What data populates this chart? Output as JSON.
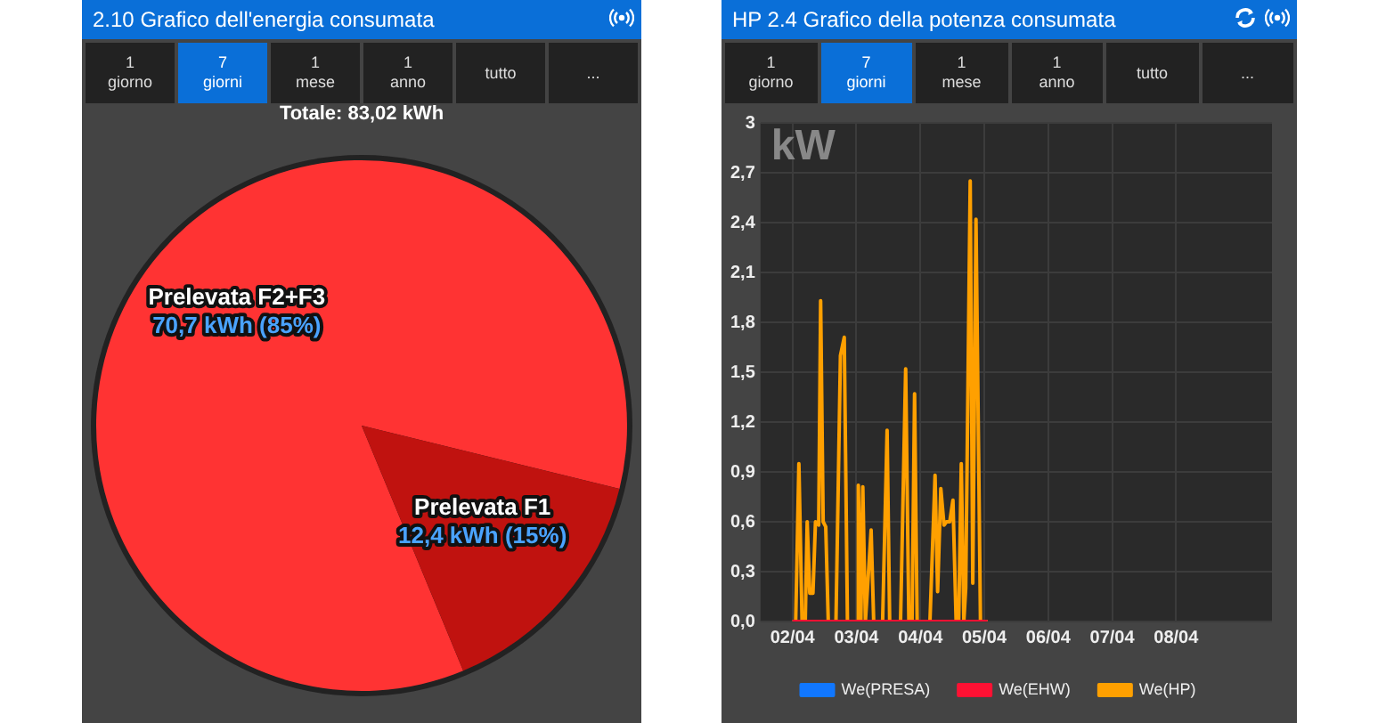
{
  "chart_data": [
    {
      "type": "pie",
      "title": "2.10 Grafico dell'energia consumata",
      "categories": [
        "Prelevata F2+F3",
        "Prelevata F1"
      ],
      "values": [
        70.7,
        12.4
      ],
      "value_labels": [
        "70,7 kWh (85%)",
        "12,4 kWh (15%)"
      ],
      "colors": [
        "#ff3333",
        "#c0120f"
      ],
      "annotations": [
        "Totale: 83,02 kWh",
        "1 giorno",
        "7 giorni",
        "1 mese",
        "1 anno",
        "tutto",
        "..."
      ]
    },
    {
      "type": "line",
      "title": "HP 2.4 Grafico della potenza consumata",
      "ylabel": "kW",
      "xlim": [
        "--04-01T12:00",
        "--04-09T12:00"
      ],
      "xticks": [
        {
          "value": "--04-02",
          "label": "02/04"
        },
        {
          "value": "--04-03",
          "label": "03/04"
        },
        {
          "value": "--04-04",
          "label": "04/04"
        },
        {
          "value": "--04-05",
          "label": "05/04"
        },
        {
          "value": "--04-06",
          "label": "06/04"
        },
        {
          "value": "--04-07",
          "label": "07/04"
        },
        {
          "value": "--04-08",
          "label": "08/04"
        }
      ],
      "ylim": [
        0,
        3
      ],
      "yticks": [
        {
          "value": 0,
          "label": "0,0"
        },
        {
          "value": 0.3,
          "label": "0,3"
        },
        {
          "value": 0.6,
          "label": "0,6"
        },
        {
          "value": 0.9,
          "label": "0,9"
        },
        {
          "value": 1.2,
          "label": "1,2"
        },
        {
          "value": 1.5,
          "label": "1,5"
        },
        {
          "value": 1.8,
          "label": "1,8"
        },
        {
          "value": 2.1,
          "label": "2,1"
        },
        {
          "value": 2.4,
          "label": "2,4"
        },
        {
          "value": 2.7,
          "label": "2,7"
        },
        {
          "value": 3,
          "label": "3"
        }
      ],
      "grid": true,
      "legend": "bottom",
      "marker": "none",
      "line_style": "solid",
      "annotations": [
        "1 giorno",
        "7 giorni",
        "1 mese",
        "1 anno",
        "tutto",
        "..."
      ],
      "series": [
        {
          "name": "We(PRESA)",
          "color": "#1177ff"
        },
        {
          "name": "We(EHW)",
          "color": "#ff1133",
          "x": [
            "--04-02T00:00",
            "--04-05T01:12"
          ],
          "values": [
            0,
            0
          ]
        },
        {
          "name": "We(HP)",
          "color": "#ffa000",
          "x": [
            "--04-02T00:00",
            "--04-02T01:12",
            "--04-02T02:24",
            "--04-02T03:36",
            "--04-02T04:48",
            "--04-02T05:31",
            "--04-02T06:29",
            "--04-02T07:41",
            "--04-02T08:38",
            "--04-02T09:50",
            "--04-02T10:34",
            "--04-02T11:31",
            "--04-02T12:29",
            "--04-02T13:26",
            "--04-02T16:19",
            "--04-02T18:00",
            "--04-02T19:26",
            "--04-02T20:38",
            "--04-03T00:14",
            "--04-03T00:43",
            "--04-03T01:41",
            "--04-03T02:24",
            "--04-03T03:22",
            "--04-03T05:31",
            "--04-03T06:29",
            "--04-03T09:50",
            "--04-03T11:31",
            "--04-03T12:29",
            "--04-03T16:34",
            "--04-03T18:29",
            "--04-03T19:41",
            "--04-03T20:53",
            "--04-03T21:50",
            "--04-03T22:48",
            "--04-04T03:36",
            "--04-04T05:31",
            "--04-04T06:29",
            "--04-04T07:41",
            "--04-04T08:53",
            "--04-04T09:50",
            "--04-04T11:02",
            "--04-04T12:14",
            "--04-04T13:26",
            "--04-04T14:24",
            "--04-04T15:22",
            "--04-04T16:19",
            "--04-04T17:02",
            "--04-04T18:43",
            "--04-04T19:41",
            "--04-04T20:53",
            "--04-04T22:34",
            "--04-05T01:12"
          ],
          "values": [
            0,
            0,
            0.95,
            0,
            0,
            0.6,
            0.17,
            0.17,
            0.6,
            0.58,
            1.93,
            0.6,
            0.57,
            0,
            0,
            1.6,
            1.71,
            0,
            0,
            0.82,
            0,
            0.81,
            0,
            0.55,
            0,
            0,
            1.15,
            0,
            0,
            1.52,
            0,
            0,
            1.37,
            0,
            0,
            0.88,
            0.18,
            0.8,
            0.58,
            0.6,
            0.6,
            0.73,
            0,
            0,
            0.95,
            0,
            0.2,
            2.65,
            0.23,
            2.42,
            0,
            0
          ]
        }
      ]
    }
  ]
}
